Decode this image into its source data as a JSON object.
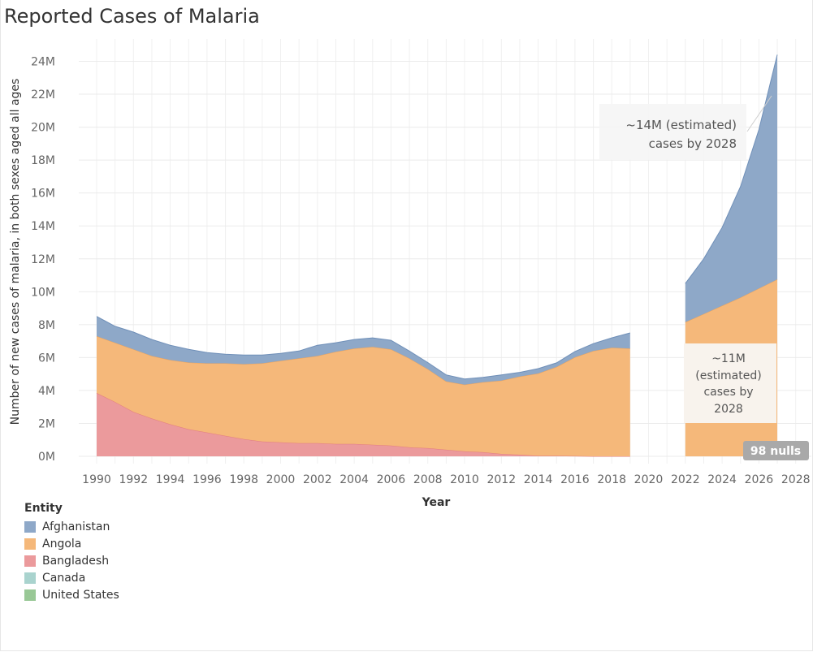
{
  "title": "Reported Cases of Malaria",
  "legend": {
    "title": "Entity",
    "items": [
      {
        "label": "Afghanistan",
        "color": "#8ea8c8"
      },
      {
        "label": "Angola",
        "color": "#f5b87a"
      },
      {
        "label": "Bangladesh",
        "color": "#eb9a9c"
      },
      {
        "label": "Canada",
        "color": "#a9d3ce"
      },
      {
        "label": "United States",
        "color": "#99c896"
      }
    ]
  },
  "annotations": {
    "afghanistan": {
      "line1": "~14M (estimated)",
      "line2": "cases by 2028"
    },
    "angola": {
      "line1": "~11M",
      "line2": "(estimated)",
      "line3": "cases by",
      "line4": "2028"
    },
    "nulls_badge": "98 nulls"
  },
  "chart_data": {
    "type": "area",
    "stacked": true,
    "title": "Reported Cases of Malaria",
    "xlabel": "Year",
    "ylabel": "Number of new cases of malaria, in both sexes aged all ages",
    "xlim": [
      1989,
      2029
    ],
    "ylim": [
      -500000,
      25000000
    ],
    "x_ticks": [
      1990,
      1992,
      1994,
      1996,
      1998,
      2000,
      2002,
      2004,
      2006,
      2008,
      2010,
      2012,
      2014,
      2016,
      2018,
      2020,
      2022,
      2024,
      2026,
      2028
    ],
    "y_ticks": [
      0,
      2000000,
      4000000,
      6000000,
      8000000,
      10000000,
      12000000,
      14000000,
      16000000,
      18000000,
      20000000,
      22000000,
      24000000
    ],
    "y_tick_labels": [
      "0M",
      "2M",
      "4M",
      "6M",
      "8M",
      "10M",
      "12M",
      "14M",
      "16M",
      "18M",
      "20M",
      "22M",
      "24M"
    ],
    "grid": true,
    "legend_position": "bottom-left",
    "segments": [
      {
        "x": [
          1990,
          1991,
          1992,
          1993,
          1994,
          1995,
          1996,
          1997,
          1998,
          1999,
          2000,
          2001,
          2002,
          2003,
          2004,
          2005,
          2006,
          2007,
          2008,
          2009,
          2010,
          2011,
          2012,
          2013,
          2014,
          2015,
          2016,
          2017,
          2018,
          2019
        ],
        "series": [
          {
            "name": "Bangladesh",
            "values": [
              3850000,
              3300000,
              2700000,
              2300000,
              1950000,
              1650000,
              1450000,
              1250000,
              1050000,
              900000,
              850000,
              800000,
              800000,
              750000,
              750000,
              700000,
              650000,
              550000,
              500000,
              400000,
              300000,
              250000,
              150000,
              100000,
              30000,
              30000,
              20000,
              0,
              0,
              0
            ]
          },
          {
            "name": "Angola",
            "values": [
              3450000,
              3600000,
              3800000,
              3800000,
              3900000,
              4050000,
              4200000,
              4400000,
              4550000,
              4750000,
              4950000,
              5150000,
              5300000,
              5600000,
              5800000,
              5950000,
              5850000,
              5400000,
              4800000,
              4150000,
              4050000,
              4250000,
              4450000,
              4750000,
              5000000,
              5400000,
              6000000,
              6400000,
              6600000,
              6550000
            ]
          },
          {
            "name": "Afghanistan",
            "values": [
              1200000,
              1000000,
              1050000,
              1000000,
              900000,
              800000,
              650000,
              550000,
              550000,
              500000,
              450000,
              450000,
              650000,
              550000,
              550000,
              550000,
              550000,
              450000,
              400000,
              400000,
              350000,
              300000,
              350000,
              250000,
              300000,
              250000,
              350000,
              450000,
              600000,
              950000
            ]
          },
          {
            "name": "Canada",
            "values": [
              0,
              0,
              0,
              0,
              0,
              0,
              0,
              0,
              0,
              0,
              0,
              0,
              0,
              0,
              0,
              0,
              0,
              0,
              0,
              0,
              0,
              0,
              0,
              0,
              0,
              0,
              0,
              0,
              0,
              0
            ]
          },
          {
            "name": "United States",
            "values": [
              0,
              0,
              0,
              0,
              0,
              0,
              0,
              0,
              0,
              0,
              0,
              0,
              0,
              0,
              0,
              0,
              0,
              0,
              0,
              0,
              0,
              0,
              0,
              0,
              0,
              0,
              0,
              0,
              0,
              0
            ]
          }
        ]
      },
      {
        "x": [
          2022,
          2023,
          2024,
          2025,
          2026,
          2027
        ],
        "series": [
          {
            "name": "Bangladesh",
            "values": [
              0,
              0,
              0,
              0,
              0,
              0
            ]
          },
          {
            "name": "Angola",
            "values": [
              8150000,
              8650000,
              9150000,
              9650000,
              10200000,
              10750000
            ]
          },
          {
            "name": "Afghanistan",
            "values": [
              2350000,
              3350000,
              4750000,
              6750000,
              9650000,
              13650000
            ]
          },
          {
            "name": "Canada",
            "values": [
              0,
              0,
              0,
              0,
              0,
              0
            ]
          },
          {
            "name": "United States",
            "values": [
              0,
              0,
              0,
              0,
              0,
              0
            ]
          }
        ]
      }
    ]
  }
}
